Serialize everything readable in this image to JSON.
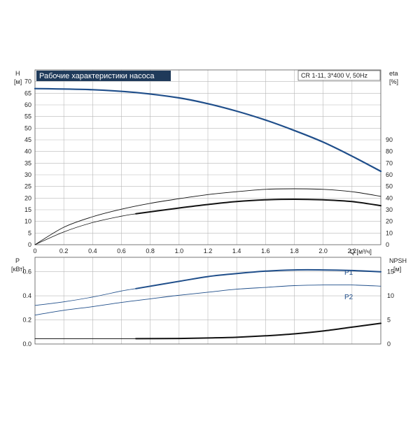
{
  "header": {
    "title": "Рабочие характеристики насоса",
    "model": "CR 1-11, 3*400 V, 50Hz",
    "title_bg": "#1f3a5a",
    "title_color": "#ffffff"
  },
  "top_chart": {
    "left_axis": {
      "name": "H",
      "unit": "[м]",
      "ticks": [
        "0",
        "5",
        "10",
        "15",
        "20",
        "25",
        "30",
        "35",
        "40",
        "45",
        "50",
        "55",
        "60",
        "65",
        "70"
      ],
      "ylim": [
        0,
        75
      ]
    },
    "right_axis": {
      "name": "eta",
      "unit": "[%]",
      "ticks": [
        "0",
        "10",
        "20",
        "30",
        "40",
        "50",
        "60",
        "70",
        "80",
        "90"
      ],
      "ylim": [
        0,
        150
      ]
    },
    "x_axis": {
      "unit": "Q [м³/ч]",
      "ticks": [
        "0",
        "0.2",
        "0.4",
        "0.6",
        "0.8",
        "1.0",
        "1.2",
        "1.4",
        "1.6",
        "1.8",
        "2.0",
        "2.2"
      ],
      "xlim": [
        0,
        2.4
      ]
    }
  },
  "bottom_chart": {
    "left_axis": {
      "name": "P",
      "unit": "[кВт]",
      "ticks": [
        "0.0",
        "0.2",
        "0.4",
        "0.6"
      ],
      "ylim": [
        0,
        0.72
      ]
    },
    "right_axis": {
      "name": "NPSH",
      "unit": "[м]",
      "ticks": [
        "0",
        "5",
        "10",
        "15"
      ],
      "ylim": [
        0,
        18
      ]
    },
    "series_labels": {
      "p1": "P1",
      "p2": "P2"
    }
  },
  "chart_data": {
    "type": "line",
    "x_range": [
      0,
      2.4
    ],
    "series": [
      {
        "axis": "H",
        "color": "#1f4e8a",
        "width": 2.2,
        "x": [
          0,
          0.4,
          0.7,
          1.0,
          1.2,
          1.4,
          1.6,
          1.8,
          2.0,
          2.2,
          2.4
        ],
        "y": [
          67,
          66.5,
          65.3,
          63,
          60.5,
          57.3,
          53.5,
          49,
          44,
          38,
          31.5
        ]
      },
      {
        "axis": "eta",
        "color": "#111111",
        "width": 0.9,
        "x": [
          0,
          0.2,
          0.4,
          0.6,
          0.8,
          1.0,
          1.2,
          1.4,
          1.6,
          1.8,
          2.0,
          2.2,
          2.4
        ],
        "y": [
          0,
          15,
          24,
          30.5,
          35.5,
          39.5,
          43,
          45.5,
          47.5,
          48,
          47.5,
          45.5,
          41.5
        ]
      },
      {
        "axis": "eta",
        "color": "#111111",
        "width": 0.8,
        "x": [
          0,
          0.2,
          0.4,
          0.6,
          0.7
        ],
        "y": [
          0,
          11,
          19,
          24.5,
          26.5
        ]
      },
      {
        "axis": "eta",
        "color": "#111111",
        "width": 2.0,
        "x": [
          0.7,
          1.0,
          1.2,
          1.4,
          1.6,
          1.8,
          2.0,
          2.2,
          2.4
        ],
        "y": [
          26.5,
          31.5,
          34.5,
          37,
          38.5,
          39,
          38.5,
          37,
          33.5
        ]
      },
      {
        "axis": "P",
        "color": "#1f4e8a",
        "width": 0.8,
        "x": [
          0,
          0.2,
          0.4,
          0.6,
          0.7
        ],
        "y": [
          0.32,
          0.35,
          0.39,
          0.44,
          0.46
        ]
      },
      {
        "axis": "P",
        "color": "#1f4e8a",
        "width": 2.0,
        "x": [
          0.7,
          1.0,
          1.2,
          1.4,
          1.6,
          1.8,
          2.0,
          2.2,
          2.4
        ],
        "y": [
          0.46,
          0.52,
          0.56,
          0.585,
          0.605,
          0.615,
          0.615,
          0.61,
          0.6
        ]
      },
      {
        "axis": "P",
        "color": "#1f4e8a",
        "width": 0.9,
        "x": [
          0,
          0.2,
          0.4,
          0.6,
          0.8,
          1.0,
          1.2,
          1.4,
          1.6,
          1.8,
          2.0,
          2.2,
          2.4
        ],
        "y": [
          0.24,
          0.28,
          0.31,
          0.345,
          0.375,
          0.405,
          0.43,
          0.455,
          0.47,
          0.485,
          0.49,
          0.49,
          0.48
        ]
      },
      {
        "axis": "NPSH",
        "color": "#111111",
        "width": 1.0,
        "x": [
          0,
          0.3,
          0.7
        ],
        "y": [
          1.1,
          1.1,
          1.1
        ]
      },
      {
        "axis": "NPSH",
        "color": "#111111",
        "width": 2.0,
        "x": [
          0.7,
          1.0,
          1.2,
          1.4,
          1.6,
          1.8,
          2.0,
          2.2,
          2.4
        ],
        "y": [
          1.1,
          1.15,
          1.25,
          1.4,
          1.7,
          2.1,
          2.7,
          3.5,
          4.3
        ]
      }
    ]
  }
}
